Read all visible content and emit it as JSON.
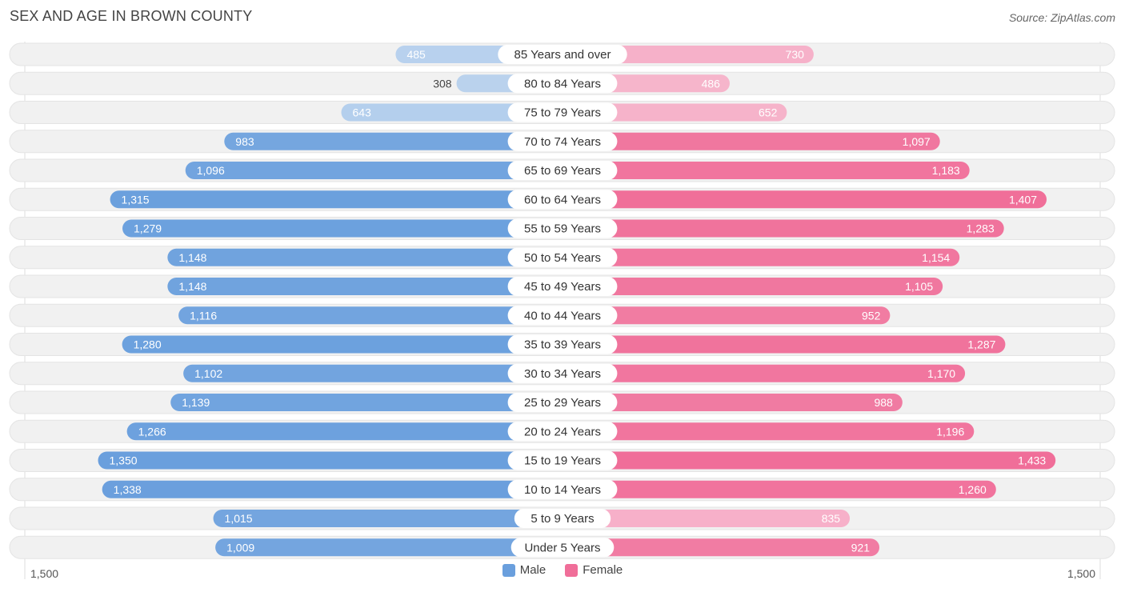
{
  "title": "SEX AND AGE IN BROWN COUNTY",
  "source": "Source: ZipAtlas.com",
  "legend": {
    "male": "Male",
    "female": "Female"
  },
  "colors": {
    "male": "#6a9fdd",
    "male_light": "#a9c8ec",
    "female": "#f06e99",
    "female_light": "#f7a6c2",
    "track": "#f1f1f1"
  },
  "axis": {
    "left_label": "1,500",
    "right_label": "1,500"
  },
  "chart_data": {
    "type": "bar",
    "orientation": "horizontal-butterfly",
    "title": "SEX AND AGE IN BROWN COUNTY",
    "xlim": [
      -1500,
      1500
    ],
    "categories": [
      "85 Years and over",
      "80 to 84 Years",
      "75 to 79 Years",
      "70 to 74 Years",
      "65 to 69 Years",
      "60 to 64 Years",
      "55 to 59 Years",
      "50 to 54 Years",
      "45 to 49 Years",
      "40 to 44 Years",
      "35 to 39 Years",
      "30 to 34 Years",
      "25 to 29 Years",
      "20 to 24 Years",
      "15 to 19 Years",
      "10 to 14 Years",
      "5 to 9 Years",
      "Under 5 Years"
    ],
    "series": [
      {
        "name": "Male",
        "values": [
          485,
          308,
          643,
          983,
          1096,
          1315,
          1279,
          1148,
          1148,
          1116,
          1280,
          1102,
          1139,
          1266,
          1350,
          1338,
          1015,
          1009
        ],
        "labels": [
          "485",
          "308",
          "643",
          "983",
          "1,096",
          "1,315",
          "1,279",
          "1,148",
          "1,148",
          "1,116",
          "1,280",
          "1,102",
          "1,139",
          "1,266",
          "1,350",
          "1,338",
          "1,015",
          "1,009"
        ]
      },
      {
        "name": "Female",
        "values": [
          730,
          486,
          652,
          1097,
          1183,
          1407,
          1283,
          1154,
          1105,
          952,
          1287,
          1170,
          988,
          1196,
          1433,
          1260,
          835,
          921
        ],
        "labels": [
          "730",
          "486",
          "652",
          "1,097",
          "1,183",
          "1,407",
          "1,283",
          "1,154",
          "1,105",
          "952",
          "1,287",
          "1,170",
          "988",
          "1,196",
          "1,433",
          "1,260",
          "835",
          "921"
        ]
      }
    ]
  }
}
